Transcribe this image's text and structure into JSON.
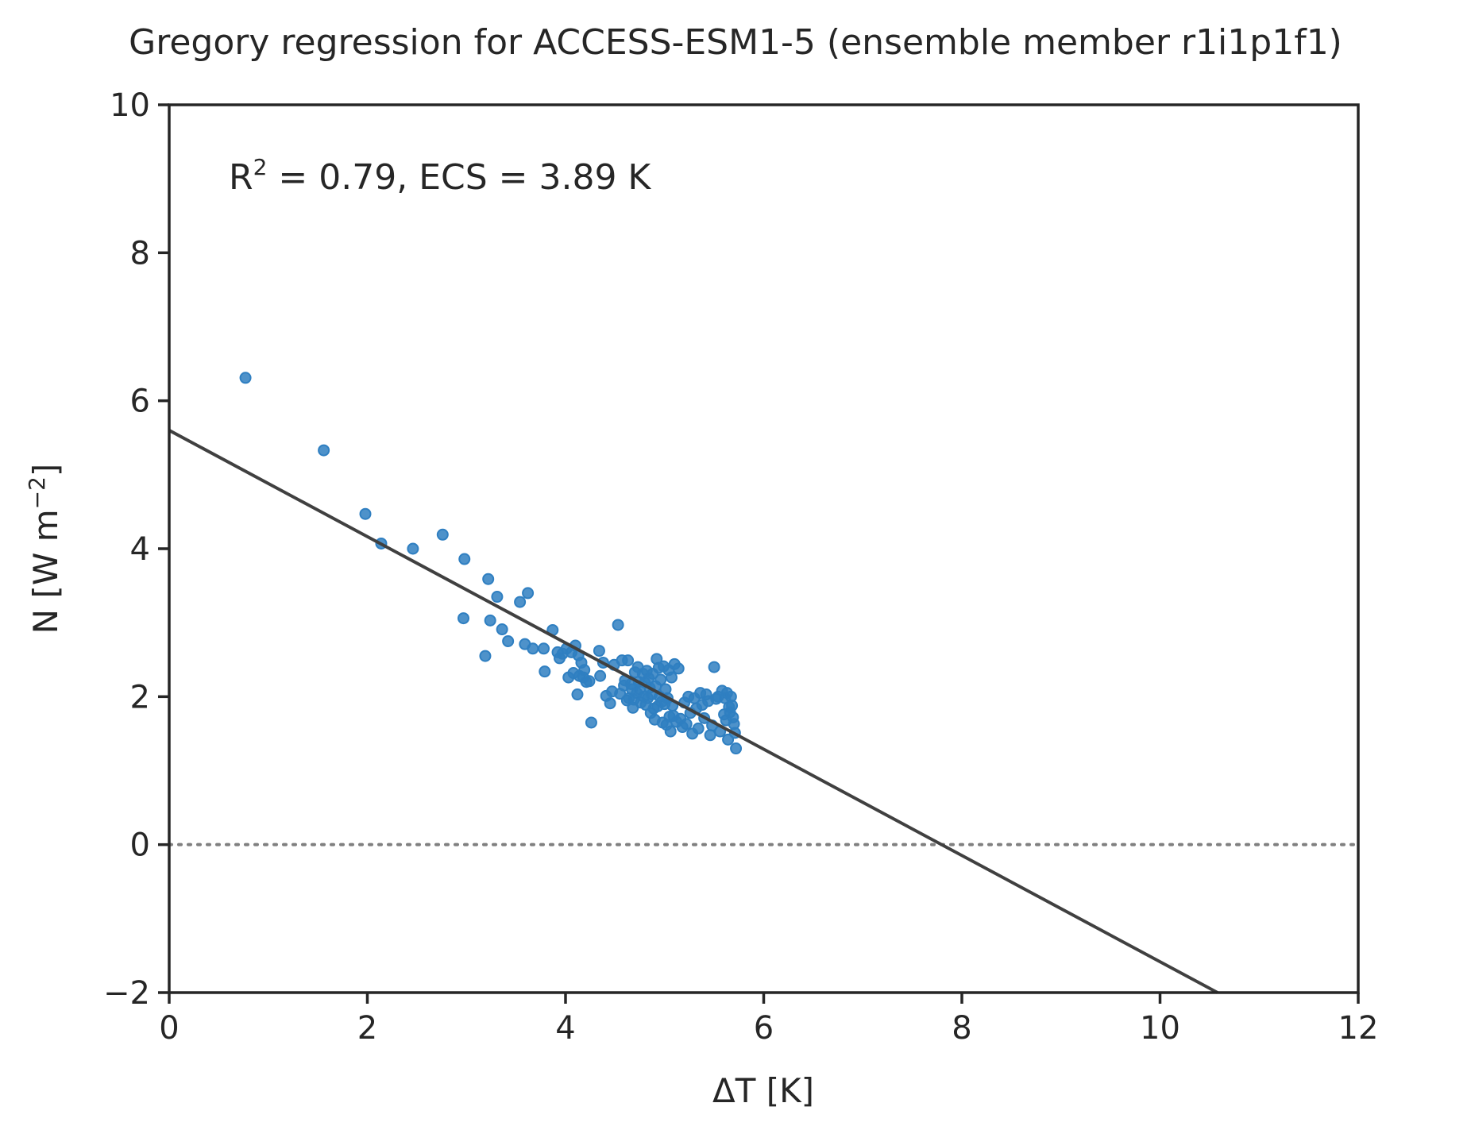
{
  "chart_data": {
    "type": "scatter",
    "title": "Gregory regression for ACCESS-ESM1-5 (ensemble member r1i1p1f1)",
    "xlabel": "ΔT [K]",
    "ylabel": {
      "prefix": "N [W m",
      "sup": "−2",
      "suffix": "]"
    },
    "xlim": [
      0,
      12
    ],
    "ylim": [
      -2,
      10
    ],
    "xticks": [
      0,
      2,
      4,
      6,
      8,
      10,
      12
    ],
    "yticks": [
      -2,
      0,
      2,
      4,
      6,
      8,
      10
    ],
    "xtick_labels": [
      "0",
      "2",
      "4",
      "6",
      "8",
      "10",
      "12"
    ],
    "ytick_labels": [
      "−2",
      "0",
      "2",
      "4",
      "6",
      "8",
      "10"
    ],
    "grid": false,
    "annotation": {
      "prefix": "R",
      "sup": "2",
      "suffix": " = 0.79, ECS = 3.89 K",
      "data_x": 0.6,
      "data_y": 8.85
    },
    "zero_line": {
      "y": 0,
      "style": "dotted",
      "color": "#808080"
    },
    "regression_line": {
      "x": [
        0,
        10.58
      ],
      "y": [
        5.6,
        -2.0
      ],
      "color": "#404040"
    },
    "series": [
      {
        "color": "#2f7fc1",
        "x": [
          0.77,
          1.56,
          1.98,
          2.14,
          2.46,
          2.76,
          2.98,
          2.97,
          3.19,
          3.22,
          3.24,
          3.31,
          3.36,
          3.42,
          3.54,
          3.59,
          3.62,
          3.67,
          3.79,
          3.78,
          3.87,
          3.92,
          3.94,
          3.97,
          4.01,
          4.03,
          4.06,
          4.08,
          4.1,
          4.12,
          4.13,
          4.14,
          4.16,
          4.18,
          4.19,
          4.21,
          4.24,
          4.26,
          4.34,
          4.35,
          4.38,
          4.41,
          4.45,
          4.47,
          4.49,
          4.53,
          4.55,
          4.57,
          4.59,
          4.6,
          4.62,
          4.63,
          4.64,
          4.66,
          4.67,
          4.68,
          4.69,
          4.7,
          4.72,
          4.73,
          4.74,
          4.75,
          4.76,
          4.78,
          4.79,
          4.8,
          4.81,
          4.82,
          4.83,
          4.84,
          4.85,
          4.86,
          4.87,
          4.88,
          4.89,
          4.9,
          4.91,
          4.92,
          4.93,
          4.94,
          4.95,
          4.96,
          4.97,
          4.98,
          4.99,
          5.0,
          5.01,
          5.02,
          5.03,
          5.04,
          5.05,
          5.06,
          5.07,
          5.08,
          5.09,
          5.1,
          5.12,
          5.14,
          5.16,
          5.18,
          5.2,
          5.22,
          5.24,
          5.26,
          5.28,
          5.3,
          5.32,
          5.34,
          5.36,
          5.38,
          5.4,
          5.42,
          5.44,
          5.46,
          5.48,
          5.5,
          5.52,
          5.54,
          5.56,
          5.58,
          5.6,
          5.61,
          5.62,
          5.63,
          5.64,
          5.65,
          5.66,
          5.67,
          5.68,
          5.69,
          5.7,
          5.71,
          5.72
        ],
        "y": [
          6.31,
          5.33,
          4.47,
          4.07,
          4.0,
          4.19,
          3.86,
          3.06,
          2.55,
          3.59,
          3.03,
          3.35,
          2.91,
          2.75,
          3.28,
          2.71,
          3.4,
          2.65,
          2.34,
          2.65,
          2.9,
          2.6,
          2.52,
          2.58,
          2.65,
          2.26,
          2.6,
          2.32,
          2.69,
          2.03,
          2.56,
          2.28,
          2.46,
          2.26,
          2.36,
          2.2,
          2.21,
          1.65,
          2.62,
          2.28,
          2.46,
          2.01,
          1.91,
          2.07,
          2.43,
          2.97,
          2.04,
          2.49,
          2.15,
          2.22,
          1.95,
          2.49,
          1.98,
          2.17,
          2.1,
          1.85,
          1.96,
          2.33,
          2.05,
          2.4,
          2.2,
          2.1,
          1.92,
          2.31,
          2.0,
          2.19,
          1.89,
          2.35,
          1.98,
          2.25,
          2.12,
          1.78,
          2.03,
          2.31,
          1.84,
          1.69,
          2.14,
          2.51,
          1.87,
          2.39,
          2.0,
          2.23,
          1.93,
          1.65,
          2.41,
          1.9,
          2.1,
          1.62,
          1.98,
          2.36,
          1.73,
          1.53,
          2.26,
          1.88,
          1.74,
          2.44,
          1.66,
          2.38,
          1.7,
          1.59,
          1.92,
          1.63,
          2.0,
          1.78,
          1.5,
          1.98,
          1.84,
          1.57,
          2.05,
          1.89,
          1.71,
          2.03,
          1.94,
          1.48,
          1.61,
          2.4,
          1.97,
          2.0,
          1.53,
          2.08,
          1.76,
          1.98,
          1.68,
          2.05,
          1.42,
          1.86,
          1.79,
          2.0,
          1.88,
          1.72,
          1.63,
          1.51,
          1.3
        ]
      }
    ]
  }
}
